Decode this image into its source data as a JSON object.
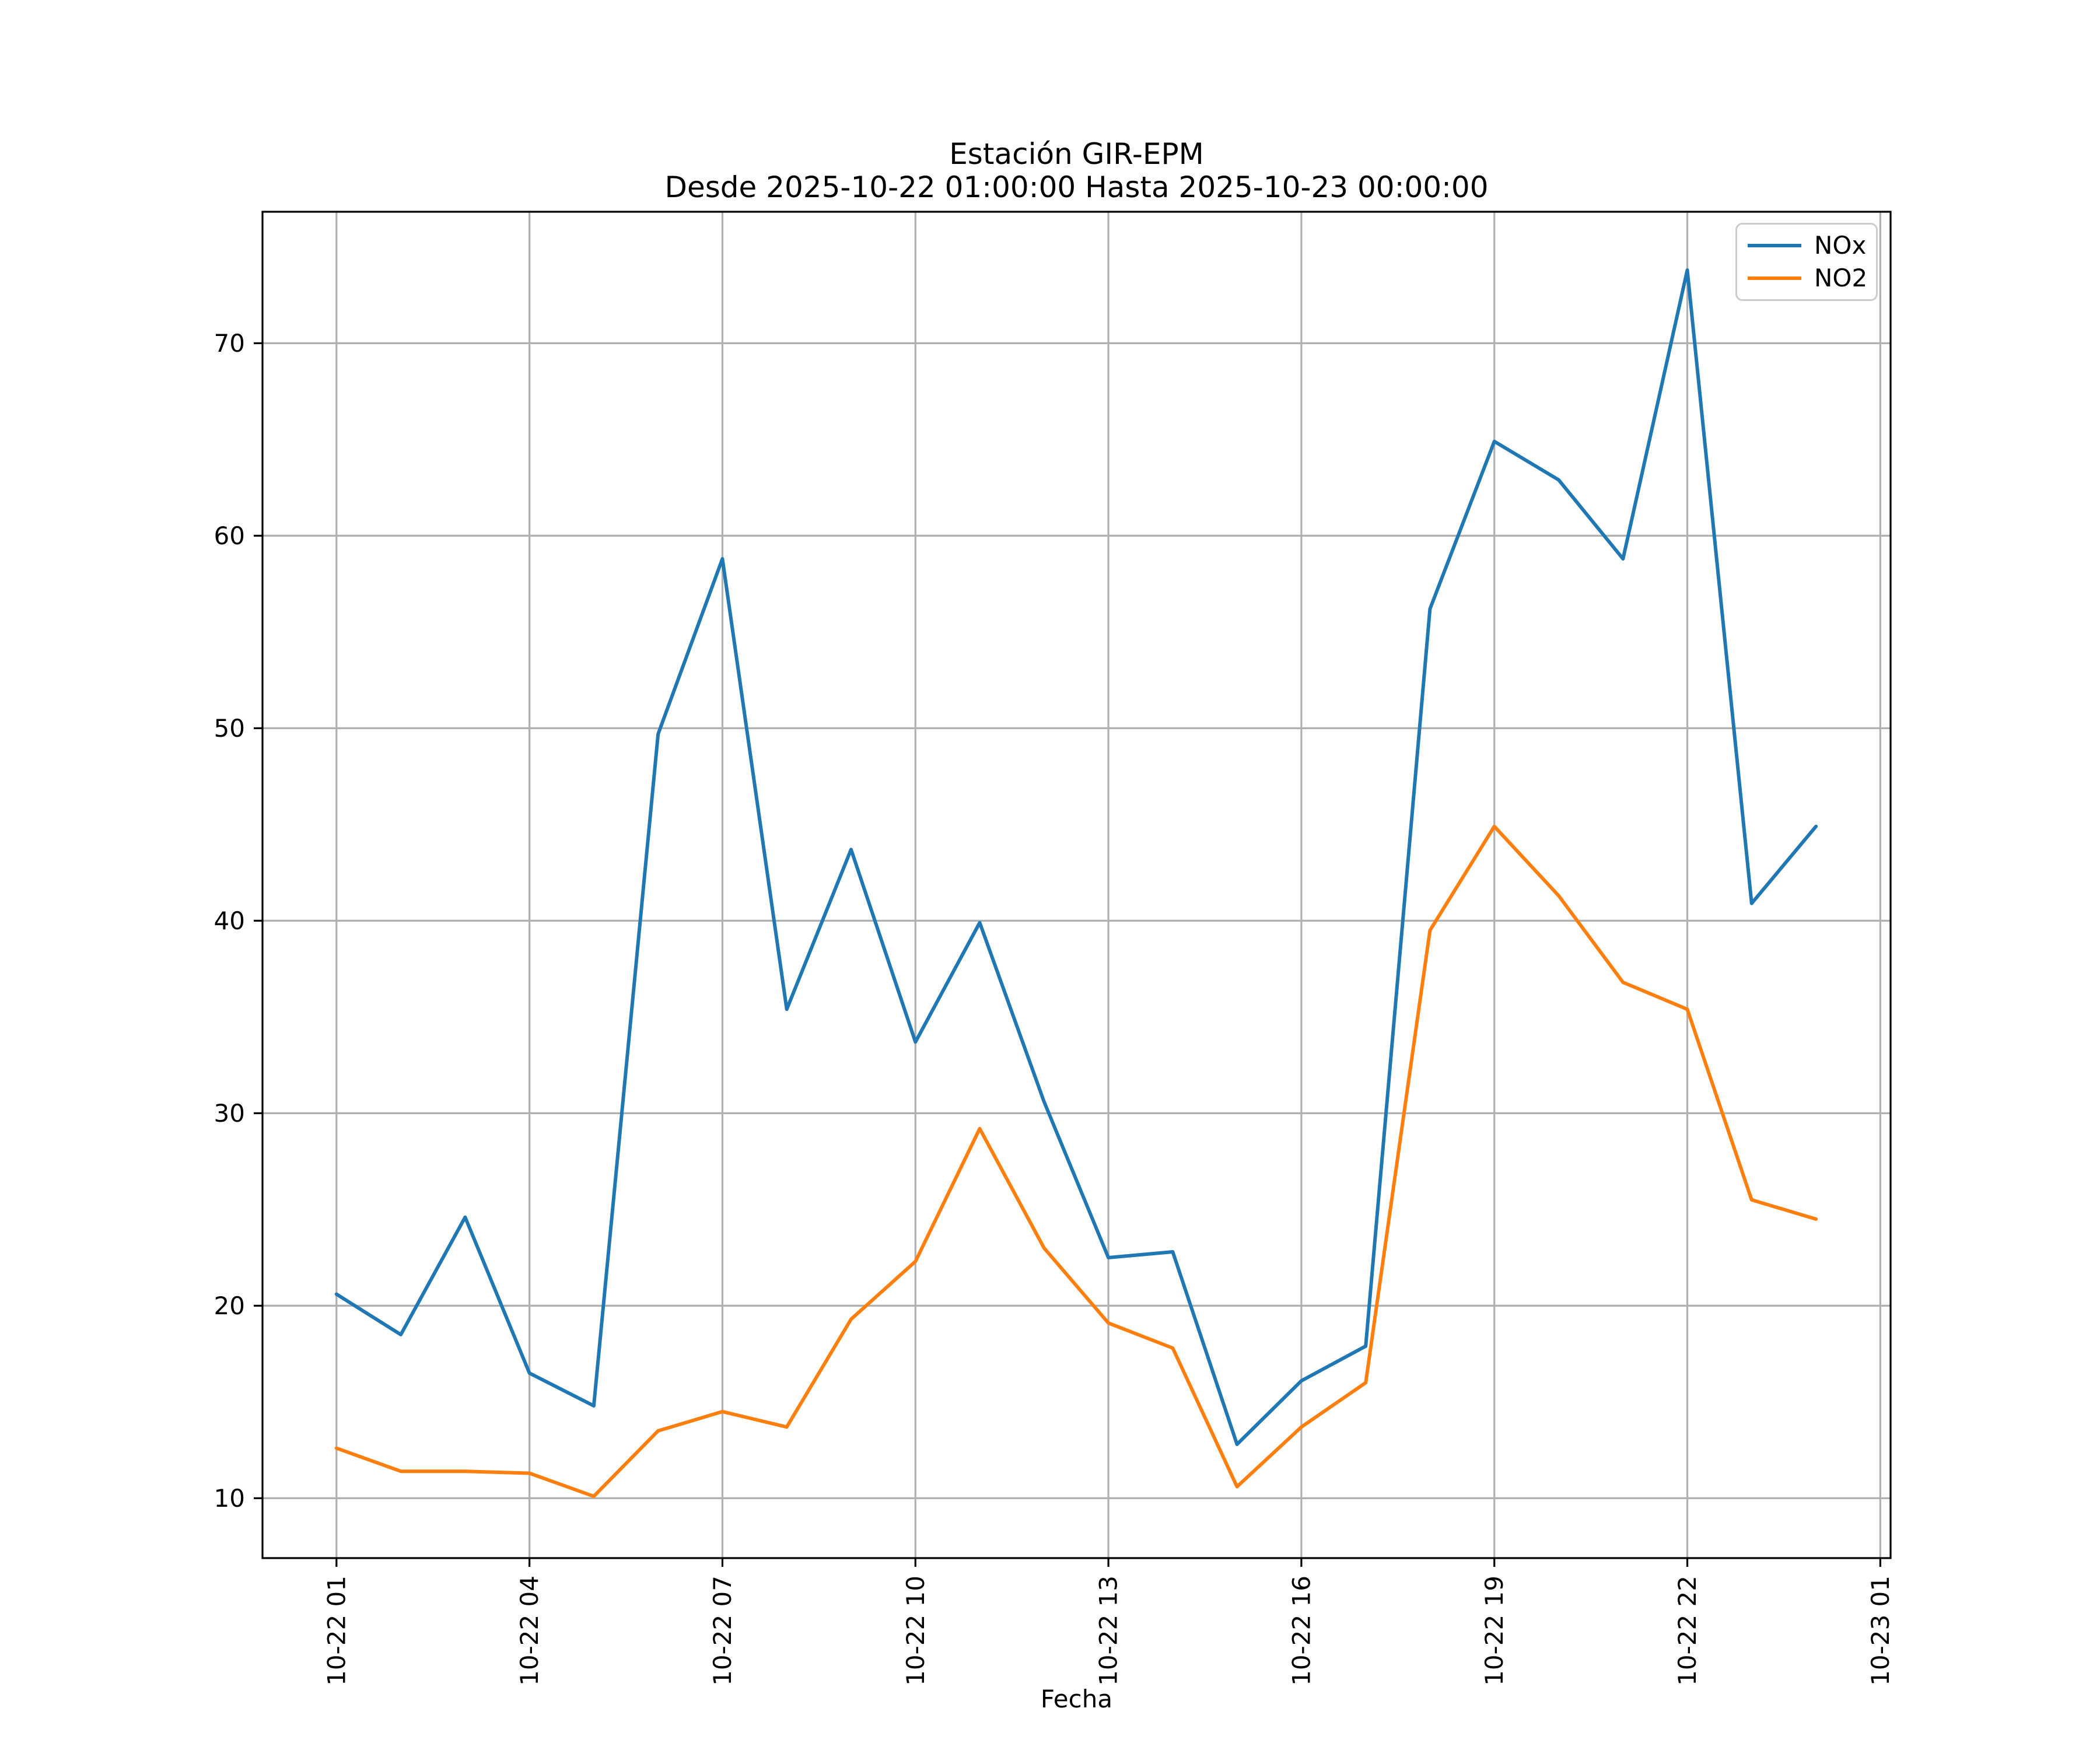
{
  "chart_data": {
    "type": "line",
    "title": "Estación GIR-EPM",
    "subtitle": "Desde 2025-10-22 01:00:00 Hasta 2025-10-23 00:00:00",
    "xlabel": "Fecha",
    "ylabel": "",
    "grid": true,
    "legend_position": "upper right",
    "grid_color": "#b0b0b0",
    "spine_color": "#000000",
    "background_color": "#ffffff",
    "x_hours": [
      1,
      2,
      3,
      4,
      5,
      6,
      7,
      8,
      9,
      10,
      11,
      12,
      13,
      14,
      15,
      16,
      17,
      18,
      19,
      20,
      21,
      22,
      23,
      24
    ],
    "x_tick_positions": [
      1,
      4,
      7,
      10,
      13,
      16,
      19,
      22,
      25
    ],
    "x_tick_labels": [
      "10-22 01",
      "10-22 04",
      "10-22 07",
      "10-22 10",
      "10-22 13",
      "10-22 16",
      "10-22 19",
      "10-22 22",
      "10-23 01"
    ],
    "y_ticks": [
      10,
      20,
      30,
      40,
      50,
      60,
      70
    ],
    "y_tick_labels": [
      "10",
      "20",
      "30",
      "40",
      "50",
      "60",
      "70"
    ],
    "xlim": [
      -0.15,
      25.16
    ],
    "ylim": [
      6.89,
      76.83
    ],
    "series": [
      {
        "name": "NOx",
        "color": "#1f77b4",
        "values": [
          20.6,
          18.5,
          24.6,
          16.5,
          14.8,
          49.7,
          58.8,
          35.4,
          43.7,
          33.7,
          39.9,
          30.6,
          22.5,
          22.8,
          12.8,
          16.1,
          17.9,
          56.2,
          64.9,
          62.9,
          58.8,
          73.8,
          40.9,
          44.9
        ]
      },
      {
        "name": "NO2",
        "color": "#ff7f0e",
        "values": [
          12.6,
          11.4,
          11.4,
          11.3,
          10.1,
          13.5,
          14.5,
          13.7,
          19.3,
          22.3,
          29.2,
          23.0,
          19.1,
          17.8,
          10.6,
          13.7,
          16.0,
          39.5,
          44.9,
          41.3,
          36.8,
          35.4,
          25.5,
          24.5
        ]
      }
    ]
  }
}
